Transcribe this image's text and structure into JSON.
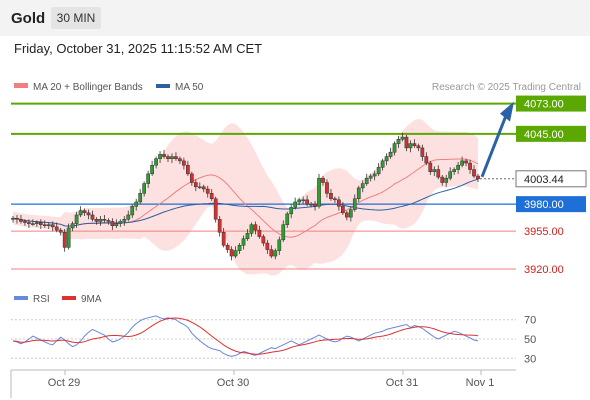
{
  "header": {
    "asset": "Gold",
    "timeframe": "30 MIN",
    "timestamp": "Friday, October 31, 2025 11:15:52 AM CET"
  },
  "legend": {
    "ma20": "MA 20 + Bollinger Bands",
    "ma50": "MA 50",
    "copyright": "Research © 2025 Trading Central"
  },
  "rsi_legend": {
    "rsi": "RSI",
    "ma9": "9MA"
  },
  "colors": {
    "ma20": "#f08080",
    "ma50": "#2f5f9f",
    "band_fill": "#fde1e1",
    "resistance": "#5aa800",
    "pivot": "#1f6fd8",
    "support": "#f08080",
    "price": "#444444",
    "arrow": "#2a62a8",
    "candle_up": "#2e9e2e",
    "candle_down": "#d43030",
    "rsi_line": "#6688dd",
    "rsi_ma": "#e03030"
  },
  "chart_data": [
    {
      "type": "candlestick",
      "x_labels": [
        "Oct 29",
        "Oct 30",
        "Oct 31",
        "Nov 1"
      ],
      "ylim": [
        3908,
        4080
      ],
      "levels": [
        {
          "label": "4073.00",
          "value": 4073,
          "kind": "resistance"
        },
        {
          "label": "4045.00",
          "value": 4045,
          "kind": "resistance"
        },
        {
          "label": "4003.44",
          "value": 4003.44,
          "kind": "price"
        },
        {
          "label": "3980.00",
          "value": 3980,
          "kind": "pivot"
        },
        {
          "label": "3955.00",
          "value": 3955,
          "kind": "support"
        },
        {
          "label": "3920.00",
          "value": 3920,
          "kind": "support"
        }
      ],
      "closes": [
        3967,
        3966,
        3964,
        3963,
        3962,
        3962,
        3963,
        3961,
        3960,
        3961,
        3959,
        3956,
        3954,
        3940,
        3958,
        3962,
        3970,
        3974,
        3972,
        3970,
        3966,
        3964,
        3966,
        3965,
        3964,
        3960,
        3962,
        3964,
        3966,
        3970,
        3978,
        3982,
        3990,
        3999,
        4008,
        4016,
        4022,
        4026,
        4024,
        4022,
        4024,
        4022,
        4020,
        4016,
        4008,
        4000,
        3996,
        3996,
        3994,
        3990,
        3985,
        3966,
        3954,
        3942,
        3938,
        3932,
        3937,
        3942,
        3948,
        3953,
        3961,
        3956,
        3950,
        3944,
        3938,
        3932,
        3937,
        3947,
        3961,
        3971,
        3977,
        3982,
        3984,
        3984,
        3980,
        3980,
        3978,
        4004,
        4000,
        3990,
        3985,
        3984,
        3978,
        3972,
        3968,
        3975,
        3985,
        3995,
        3999,
        4004,
        4006,
        4008,
        4014,
        4020,
        4024,
        4028,
        4036,
        4040,
        4042,
        4032,
        4036,
        4034,
        4032,
        4024,
        4018,
        4010,
        4012,
        4005,
        4000,
        4004,
        4010,
        4012,
        4016,
        4020,
        4018,
        4012,
        4006,
        4003.44
      ],
      "rsi_yticks": [
        70,
        50,
        30
      ],
      "rsi_ylim": [
        22,
        78
      ],
      "rsi": [
        48,
        47,
        45,
        47,
        50,
        53,
        51,
        49,
        47,
        45,
        44,
        48,
        52,
        49,
        45,
        42,
        44,
        48,
        53,
        57,
        60,
        58,
        56,
        54,
        50,
        47,
        48,
        50,
        53,
        57,
        62,
        66,
        69,
        71,
        72,
        73,
        74,
        72,
        71,
        72,
        71,
        70,
        67,
        65,
        62,
        56,
        52,
        48,
        45,
        42,
        40,
        39,
        38,
        35,
        33,
        32,
        33,
        35,
        37,
        36,
        34,
        33,
        35,
        37,
        39,
        41,
        40,
        42,
        44,
        46,
        48,
        46,
        44,
        46,
        48,
        50,
        52,
        54,
        52,
        50,
        48,
        47,
        48,
        51,
        53,
        52,
        50,
        48,
        50,
        52,
        54,
        56,
        57,
        58,
        60,
        61,
        62,
        63,
        64,
        65,
        62,
        64,
        63,
        61,
        58,
        55,
        52,
        50,
        52,
        54,
        56,
        58,
        57,
        55,
        53,
        51,
        49,
        48
      ]
    }
  ]
}
